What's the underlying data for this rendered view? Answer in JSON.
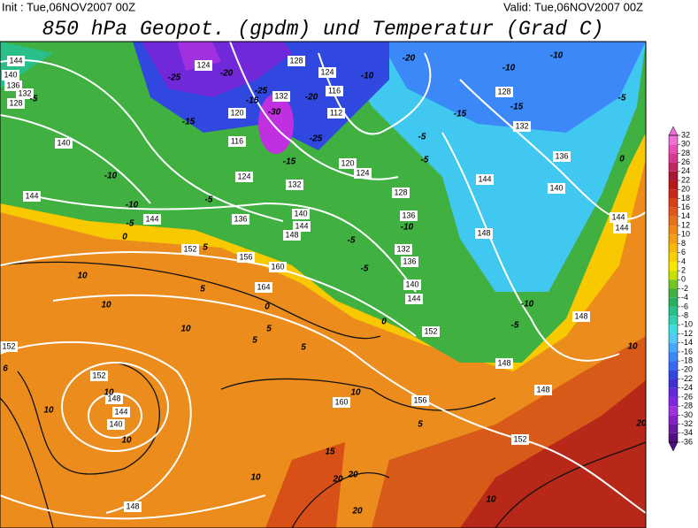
{
  "header": {
    "init": "Init : Tue,06NOV2007 00Z",
    "valid": "Valid: Tue,06NOV2007 00Z",
    "title": "850 hPa Geopot. (gpdm) und Temperatur (Grad C)"
  },
  "geopotential_labels": [
    144,
    140,
    136,
    132,
    128,
    124,
    128,
    124,
    132,
    116,
    120,
    112,
    116,
    124,
    120,
    124,
    132,
    136,
    140,
    144,
    148,
    144,
    140,
    144,
    152,
    156,
    160,
    164,
    128,
    136,
    132,
    136,
    140,
    144,
    152,
    148,
    148,
    148,
    144,
    144,
    144,
    148,
    140,
    136,
    132,
    128,
    152,
    148,
    144,
    140,
    148,
    160,
    156,
    152,
    152
  ],
  "temperature_labels": [
    -25,
    -20,
    -25,
    -15,
    -30,
    -20,
    -25,
    -15,
    -15,
    -10,
    -10,
    -5,
    0,
    -5,
    5,
    -20,
    -10,
    -10,
    -10,
    -15,
    -15,
    -5,
    -5,
    -5,
    0,
    -10,
    -5,
    -5,
    0,
    0,
    -10,
    -5,
    10,
    10,
    10,
    5,
    5,
    5,
    5,
    10,
    10,
    10,
    10,
    5,
    10,
    15,
    20,
    20,
    20,
    10,
    10,
    20,
    -5,
    6
  ],
  "colorbar": {
    "ticks": [
      32,
      30,
      28,
      26,
      24,
      22,
      20,
      18,
      16,
      14,
      12,
      10,
      8,
      6,
      4,
      2,
      0,
      -2,
      -4,
      -6,
      -8,
      -10,
      -12,
      -14,
      -16,
      -18,
      -20,
      -22,
      -24,
      -26,
      -28,
      -30,
      -32,
      -34,
      -36
    ],
    "colors": [
      "#f070d8",
      "#e850b8",
      "#d83890",
      "#c02860",
      "#a81830",
      "#b81818",
      "#c82818",
      "#d84018",
      "#e05818",
      "#e87018",
      "#f08818",
      "#f0a010",
      "#f8b808",
      "#f8d000",
      "#f8e800",
      "#c8e000",
      "#70c828",
      "#40b040",
      "#28b060",
      "#28c088",
      "#30d0b0",
      "#40dce0",
      "#50c8f8",
      "#48a8ff",
      "#3c88f8",
      "#3468f0",
      "#3048e0",
      "#4030d0",
      "#6028d8",
      "#8028e0",
      "#a030e0",
      "#8820c8",
      "#6a1aa0",
      "#501080"
    ]
  }
}
